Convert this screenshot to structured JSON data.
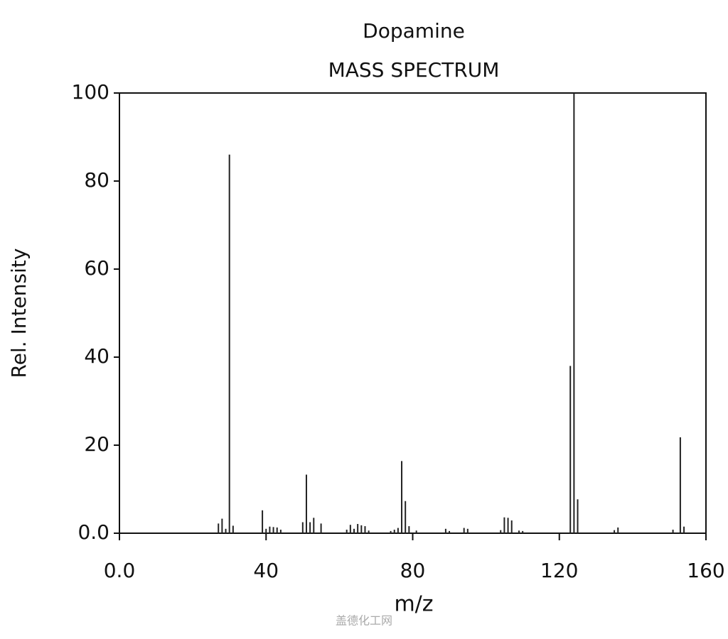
{
  "chart_data": {
    "type": "stem",
    "title": "Dopamine",
    "subtitle": "MASS SPECTRUM",
    "x_label": "m/z",
    "y_label": "Rel. Intensity",
    "color": "#222222",
    "x": [
      27,
      28,
      29,
      30,
      31,
      39,
      40,
      41,
      42,
      43,
      44,
      50,
      51,
      52,
      53,
      55,
      62,
      63,
      64,
      65,
      66,
      67,
      68,
      74,
      75,
      76,
      77,
      78,
      79,
      81,
      89,
      90,
      94,
      95,
      104,
      105,
      106,
      107,
      109,
      110,
      123,
      124,
      125,
      135,
      136,
      151,
      153,
      154
    ],
    "values": [
      2.2,
      3.3,
      1,
      86,
      1.7,
      5.2,
      1,
      1.5,
      1.4,
      1.3,
      0.8,
      2.5,
      13.3,
      2.5,
      3.5,
      2.2,
      0.8,
      1.9,
      1,
      2.1,
      1.8,
      1.6,
      0.6,
      0.5,
      0.8,
      1.2,
      16.4,
      7.3,
      1.6,
      0.6,
      1,
      0.5,
      1.2,
      1,
      0.7,
      3.6,
      3.5,
      2.9,
      0.6,
      0.5,
      38,
      100,
      7.7,
      0.7,
      1.3,
      0.8,
      21.8,
      1.5
    ],
    "xlim": [
      0,
      160
    ],
    "xticks": [
      {
        "value": 0,
        "label": "0.0"
      },
      40,
      80,
      120,
      160
    ],
    "ylim": [
      0,
      100
    ],
    "yticks": [
      {
        "value": 0,
        "label": "0.0"
      },
      20,
      40,
      60,
      80,
      100
    ],
    "watermark": "盖德化工网"
  }
}
